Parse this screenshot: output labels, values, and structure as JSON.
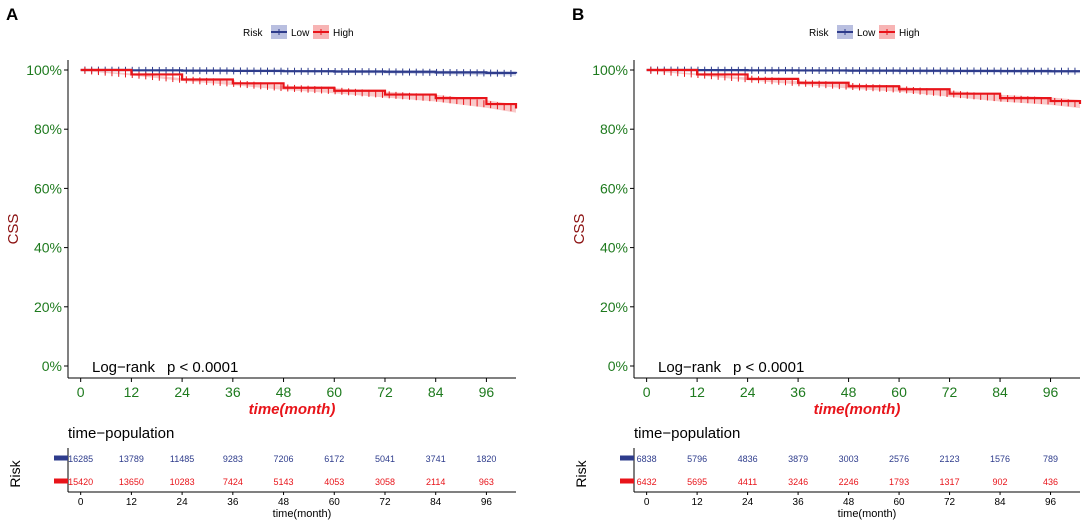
{
  "panels": [
    {
      "letter": "A",
      "legend": {
        "title": "Risk",
        "low": "Low",
        "high": "High"
      },
      "y_axis_label": "CSS",
      "x_axis_label": "time(month)",
      "annotation": {
        "test": "Log−rank",
        "pvalue": "p < 0.0001"
      },
      "table_title": "time−population",
      "table_ylabel": "Risk",
      "table_xlabel": "time(month)",
      "low_counts": [
        "16285",
        "13789",
        "11485",
        "9283",
        "7206",
        "6172",
        "5041",
        "3741",
        "1820"
      ],
      "high_counts": [
        "15420",
        "13650",
        "10283",
        "7424",
        "5143",
        "4053",
        "3058",
        "2114",
        "963"
      ]
    },
    {
      "letter": "B",
      "legend": {
        "title": "Risk",
        "low": "Low",
        "high": "High"
      },
      "y_axis_label": "CSS",
      "x_axis_label": "time(month)",
      "annotation": {
        "test": "Log−rank",
        "pvalue": "p < 0.0001"
      },
      "table_title": "time−population",
      "table_ylabel": "Risk",
      "table_xlabel": "time(month)",
      "low_counts": [
        "6838",
        "5796",
        "4836",
        "3879",
        "3003",
        "2576",
        "2123",
        "1576",
        "789"
      ],
      "high_counts": [
        "6432",
        "5695",
        "4411",
        "3246",
        "2246",
        "1793",
        "1317",
        "902",
        "436"
      ]
    }
  ],
  "colors": {
    "low": "#2e3c8c",
    "high": "#e8141a",
    "low_ci": "#b9bfe0",
    "high_ci": "#f7b4b4",
    "tick_green": "#1e7a1e",
    "css_label": "#8b1010",
    "xlabel_red": "#e8141a"
  },
  "chart_data": [
    {
      "type": "line",
      "title": "A",
      "xlabel": "time(month)",
      "ylabel": "CSS",
      "x_ticks": [
        0,
        12,
        24,
        36,
        48,
        60,
        72,
        84,
        96
      ],
      "y_ticks": [
        "0%",
        "20%",
        "40%",
        "60%",
        "80%",
        "100%"
      ],
      "xlim": [
        -3,
        103
      ],
      "ylim": [
        0,
        1
      ],
      "series": [
        {
          "name": "Low",
          "x": [
            0,
            12,
            24,
            36,
            48,
            60,
            72,
            84,
            96,
            103
          ],
          "y": [
            1.0,
            0.999,
            0.998,
            0.997,
            0.996,
            0.995,
            0.994,
            0.992,
            0.99,
            0.988
          ]
        },
        {
          "name": "High",
          "x": [
            0,
            12,
            24,
            36,
            48,
            60,
            72,
            84,
            96,
            103
          ],
          "y": [
            1.0,
            0.985,
            0.968,
            0.955,
            0.94,
            0.93,
            0.917,
            0.905,
            0.885,
            0.87
          ]
        }
      ]
    },
    {
      "type": "line",
      "title": "B",
      "xlabel": "time(month)",
      "ylabel": "CSS",
      "x_ticks": [
        0,
        12,
        24,
        36,
        48,
        60,
        72,
        84,
        96
      ],
      "y_ticks": [
        "0%",
        "20%",
        "40%",
        "60%",
        "80%",
        "100%"
      ],
      "xlim": [
        -3,
        103
      ],
      "ylim": [
        0,
        1
      ],
      "series": [
        {
          "name": "Low",
          "x": [
            0,
            12,
            24,
            36,
            48,
            60,
            72,
            84,
            96,
            103
          ],
          "y": [
            1.0,
            0.9995,
            0.999,
            0.9985,
            0.998,
            0.9975,
            0.997,
            0.9965,
            0.996,
            0.996
          ]
        },
        {
          "name": "High",
          "x": [
            0,
            12,
            24,
            36,
            48,
            60,
            72,
            84,
            96,
            103
          ],
          "y": [
            1.0,
            0.985,
            0.97,
            0.957,
            0.945,
            0.935,
            0.92,
            0.905,
            0.895,
            0.885
          ]
        }
      ]
    }
  ]
}
